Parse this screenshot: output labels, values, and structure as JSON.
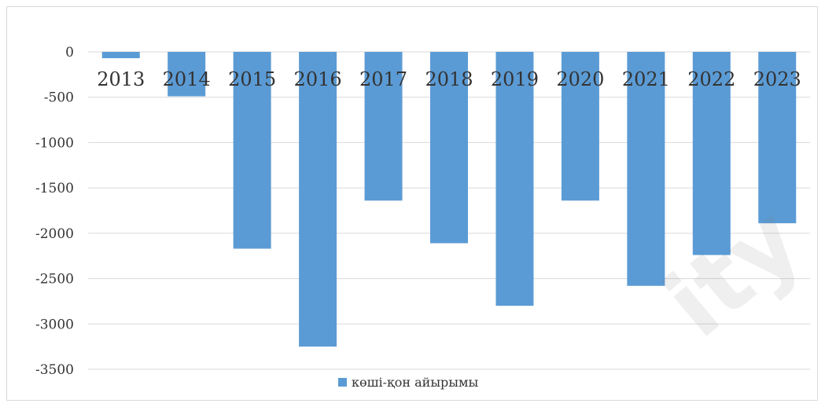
{
  "chart_data": {
    "type": "bar",
    "title": "",
    "xlabel": "",
    "ylabel": "",
    "categories": [
      "2013",
      "2014",
      "2015",
      "2016",
      "2017",
      "2018",
      "2019",
      "2020",
      "2021",
      "2022",
      "2023"
    ],
    "series": [
      {
        "name": "көші-қон айырымы",
        "values": [
          -70,
          -490,
          -2170,
          -3250,
          -1640,
          -2110,
          -2800,
          -1640,
          -2580,
          -2240,
          -1890
        ]
      }
    ],
    "ylim": [
      -3500,
      0
    ],
    "yticks": [
      "0",
      "-500",
      "-1000",
      "-1500",
      "-2000",
      "-2500",
      "-3000",
      "-3500"
    ],
    "grid": true,
    "legend_position": "bottom",
    "bar_color": "#5b9bd5",
    "grid_color": "#d9d9d9"
  },
  "watermark_text": "ity"
}
